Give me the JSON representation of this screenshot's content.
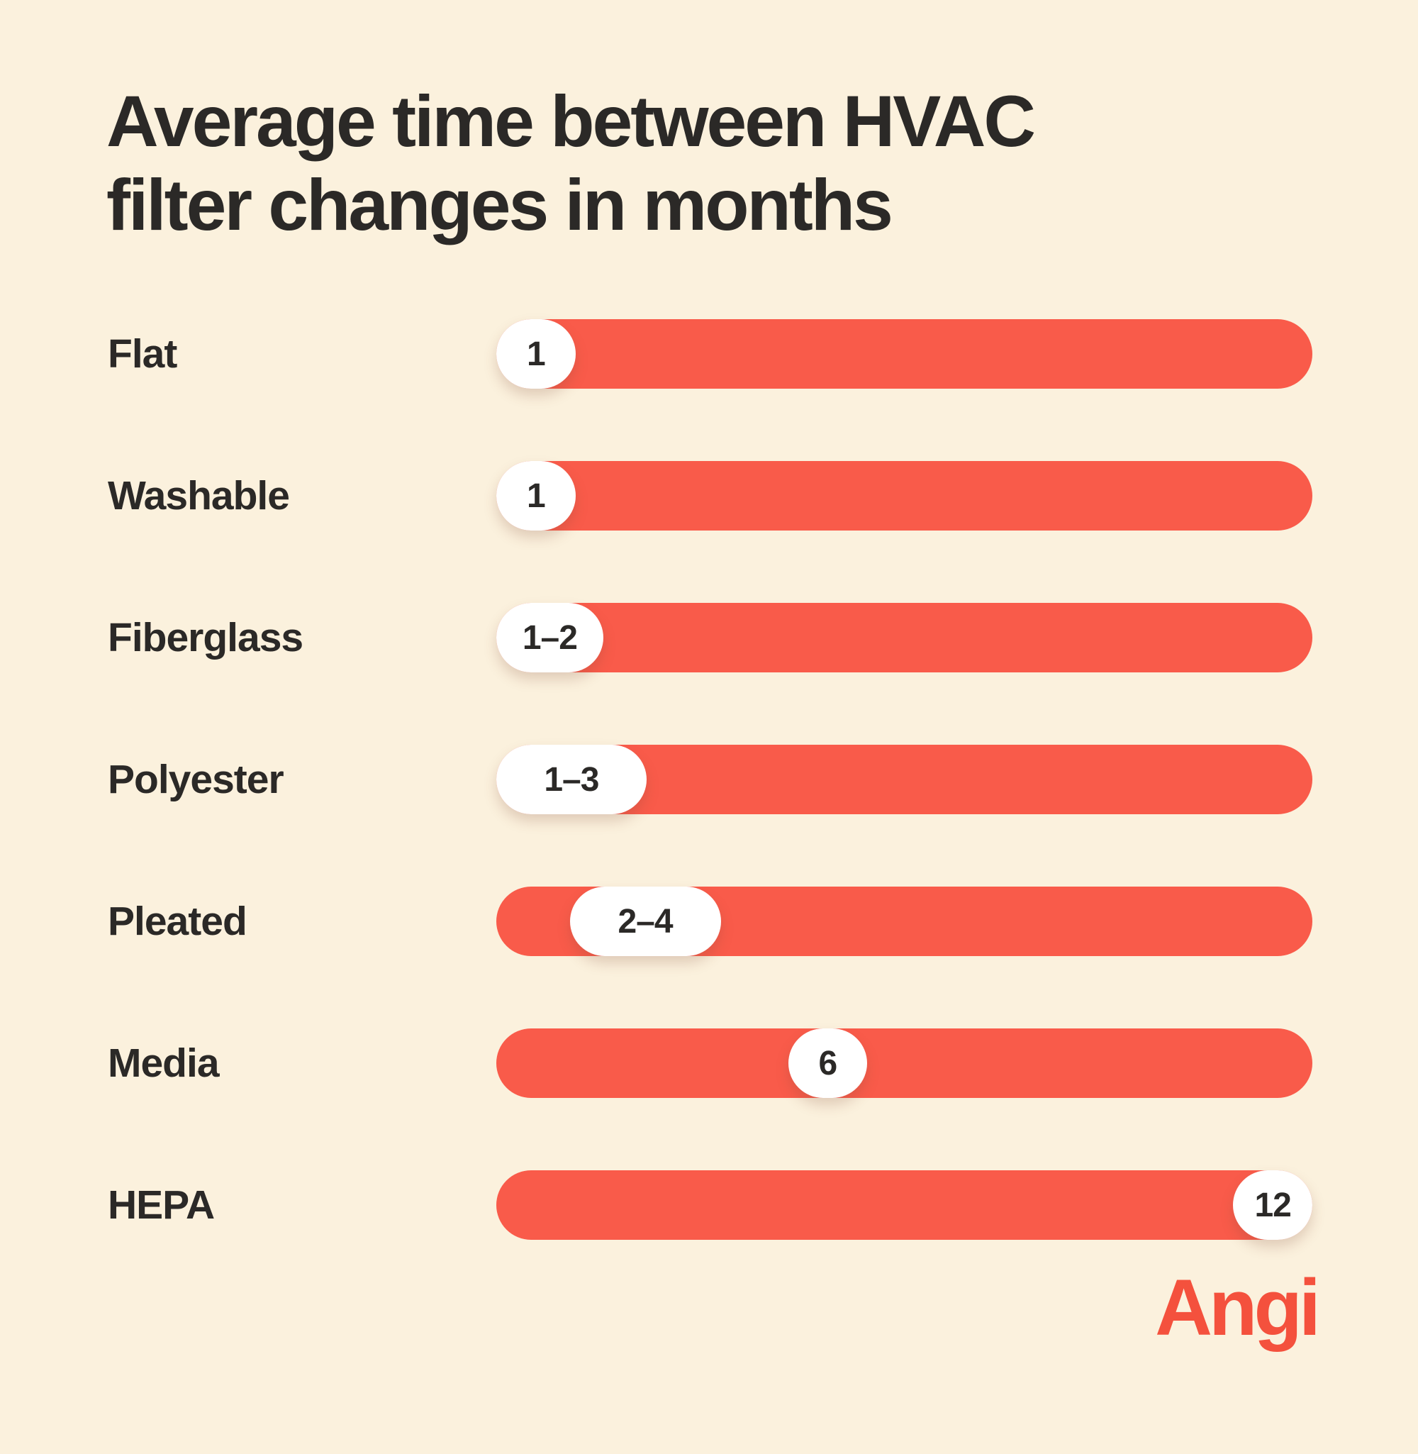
{
  "background_color": "#FBF1DD",
  "title": {
    "line1": "Average time between HVAC",
    "line2": "filter changes in months"
  },
  "logo": {
    "text": "Angi",
    "color": "#F4513D"
  },
  "colors": {
    "bar": "#F95B4A",
    "badge_background": "#FFFFFF",
    "text": "#2B2927"
  },
  "chart_data": {
    "type": "bar",
    "orientation": "horizontal",
    "unit": "months",
    "title": "Average time between HVAC filter changes in months",
    "axis_range": [
      0,
      12
    ],
    "grid": false,
    "legend": false,
    "note": "All bars are full-width pills; the white badge position along the bar marks the value in months.",
    "categories": [
      "Flat",
      "Washable",
      "Fiberglass",
      "Polyester",
      "Pleated",
      "Media",
      "HEPA"
    ],
    "value_labels": [
      "1",
      "1",
      "1–2",
      "1–3",
      "2–4",
      "6",
      "12"
    ],
    "values_min": [
      1,
      1,
      1,
      1,
      2,
      6,
      12
    ],
    "values_max": [
      1,
      1,
      2,
      3,
      4,
      6,
      12
    ],
    "rows": [
      {
        "label": "Flat",
        "value_label": "1",
        "value_min": 1,
        "value_max": 1,
        "badge_offset_pct": 0,
        "badge_width_pct": 9.7
      },
      {
        "label": "Washable",
        "value_label": "1",
        "value_min": 1,
        "value_max": 1,
        "badge_offset_pct": 0,
        "badge_width_pct": 9.7
      },
      {
        "label": "Fiberglass",
        "value_label": "1–2",
        "value_min": 1,
        "value_max": 2,
        "badge_offset_pct": 0,
        "badge_width_pct": 13.1
      },
      {
        "label": "Polyester",
        "value_label": "1–3",
        "value_min": 1,
        "value_max": 3,
        "badge_offset_pct": 0,
        "badge_width_pct": 18.4
      },
      {
        "label": "Pleated",
        "value_label": "2–4",
        "value_min": 2,
        "value_max": 4,
        "badge_offset_pct": 9.0,
        "badge_width_pct": 18.5
      },
      {
        "label": "Media",
        "value_label": "6",
        "value_min": 6,
        "value_max": 6,
        "badge_offset_pct": 35.8,
        "badge_width_pct": 9.6
      },
      {
        "label": "HEPA",
        "value_label": "12",
        "value_min": 12,
        "value_max": 12,
        "badge_offset_pct": 90.3,
        "badge_width_pct": 9.7
      }
    ]
  }
}
